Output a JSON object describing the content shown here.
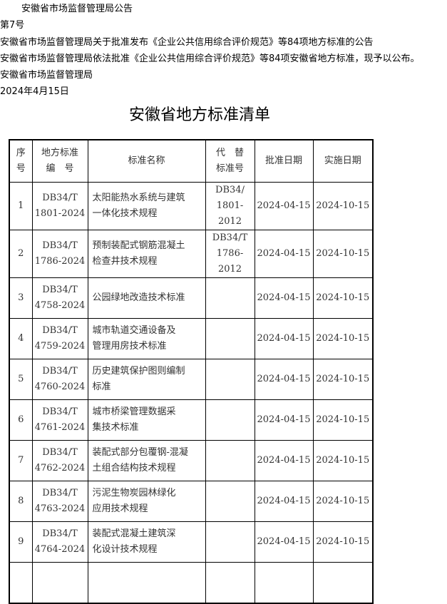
{
  "header": {
    "agency_title": "安徽省市场监督管理局公告",
    "number": "第7号",
    "subject": "安徽省市场监督管理局关于批准发布《企业公共信用综合评价规范》等84项地方标准的公告",
    "body": "安徽省市场监督管理局依法批准《企业公共信用综合评价规范》等84项安徽省地方标准，现予以公布。",
    "signature": "安徽省市场监督管理局",
    "date": "2024年4月15日"
  },
  "doc_title": "安徽省地方标准清单",
  "table": {
    "columns": [
      [
        "序",
        "号"
      ],
      [
        "地方标准",
        "编　号"
      ],
      [
        "标准名称"
      ],
      [
        "代　替",
        "标准号"
      ],
      [
        "批准日期"
      ],
      [
        "实施日期"
      ]
    ],
    "rows": [
      {
        "no": "1",
        "code": [
          "DB34/T",
          "1801-2024"
        ],
        "name": [
          "太阳能热水系统与建筑",
          "一体化技术规程"
        ],
        "replace": [
          "DB34/",
          "1801-2012"
        ],
        "approve": "2024-04-15",
        "effective": "2024-10-15"
      },
      {
        "no": "2",
        "code": [
          "DB34/T",
          "1786-2024"
        ],
        "name": [
          "预制装配式钢筋混凝土",
          "检查井技术规程"
        ],
        "replace": [
          "DB34/T",
          "1786-2012"
        ],
        "approve": "2024-04-15",
        "effective": "2024-10-15"
      },
      {
        "no": "3",
        "code": [
          "DB34/T",
          "4758-2024"
        ],
        "name": [
          "公园绿地改造技术标准",
          ""
        ],
        "replace": [
          "",
          ""
        ],
        "approve": "2024-04-15",
        "effective": "2024-10-15"
      },
      {
        "no": "4",
        "code": [
          "DB34/T",
          "4759-2024"
        ],
        "name": [
          "城市轨道交通设备及",
          "管理用房技术标准"
        ],
        "replace": [
          "",
          ""
        ],
        "approve": "2024-04-15",
        "effective": "2024-10-15"
      },
      {
        "no": "5",
        "code": [
          "DB34/T",
          "4760-2024"
        ],
        "name": [
          "历史建筑保护图则编制",
          "标准"
        ],
        "replace": [
          "",
          ""
        ],
        "approve": "2024-04-15",
        "effective": "2024-10-15"
      },
      {
        "no": "6",
        "code": [
          "DB34/T",
          "4761-2024"
        ],
        "name": [
          "城市桥梁管理数据采",
          "集技术标准"
        ],
        "replace": [
          "",
          ""
        ],
        "approve": "2024-04-15",
        "effective": "2024-10-15"
      },
      {
        "no": "7",
        "code": [
          "DB34/T",
          "4762-2024"
        ],
        "name": [
          "装配式部分包覆钢-混凝",
          "土组合结构技术规程"
        ],
        "replace": [
          "",
          ""
        ],
        "approve": "2024-04-15",
        "effective": "2024-10-15"
      },
      {
        "no": "8",
        "code": [
          "DB34/T",
          "4763-2024"
        ],
        "name": [
          "污泥生物炭园林绿化",
          "应用技术规程"
        ],
        "replace": [
          "",
          ""
        ],
        "approve": "2024-04-15",
        "effective": "2024-10-15"
      },
      {
        "no": "9",
        "code": [
          "DB34/T",
          "4764-2024"
        ],
        "name": [
          "装配式混凝土建筑深",
          "化设计技术规程"
        ],
        "replace": [
          "",
          ""
        ],
        "approve": "2024-04-15",
        "effective": "2024-10-15"
      }
    ]
  }
}
